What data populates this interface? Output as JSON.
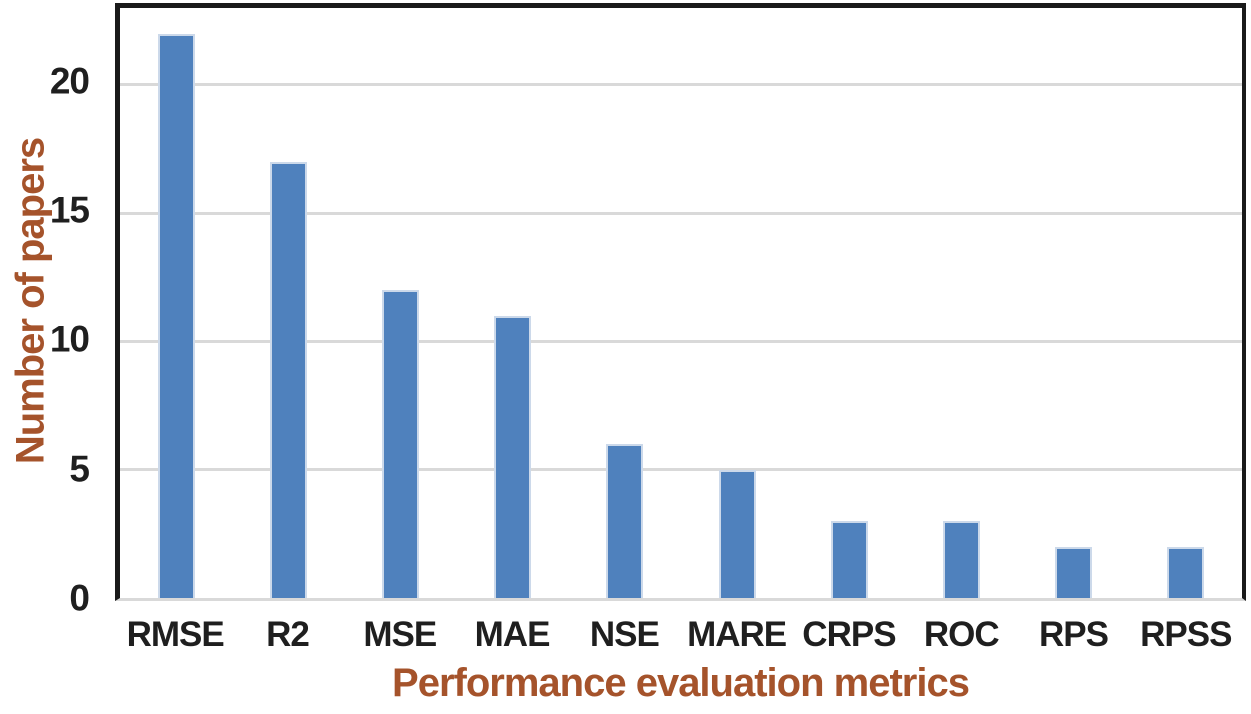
{
  "chart_data": {
    "type": "bar",
    "categories": [
      "RMSE",
      "R2",
      "MSE",
      "MAE",
      "NSE",
      "MARE",
      "CRPS",
      "ROC",
      "RPS",
      "RPSS"
    ],
    "values": [
      22,
      17,
      12,
      11,
      6,
      5,
      3,
      3,
      2,
      2
    ],
    "title": "",
    "xlabel": "Performance evaluation metrics",
    "ylabel": "Number of papers",
    "yticks": [
      0,
      5,
      10,
      15,
      20
    ],
    "ylim": [
      0,
      23
    ],
    "grid": true,
    "legend": false
  },
  "colors": {
    "bar": "#4f81bd",
    "bar_border": "#ccd9ea",
    "gridline": "#d9d9d9",
    "frame": "#1a1a1a",
    "axis_title": "#a5532b",
    "tick_label": "#1f1f1f",
    "background": "#ffffff"
  }
}
